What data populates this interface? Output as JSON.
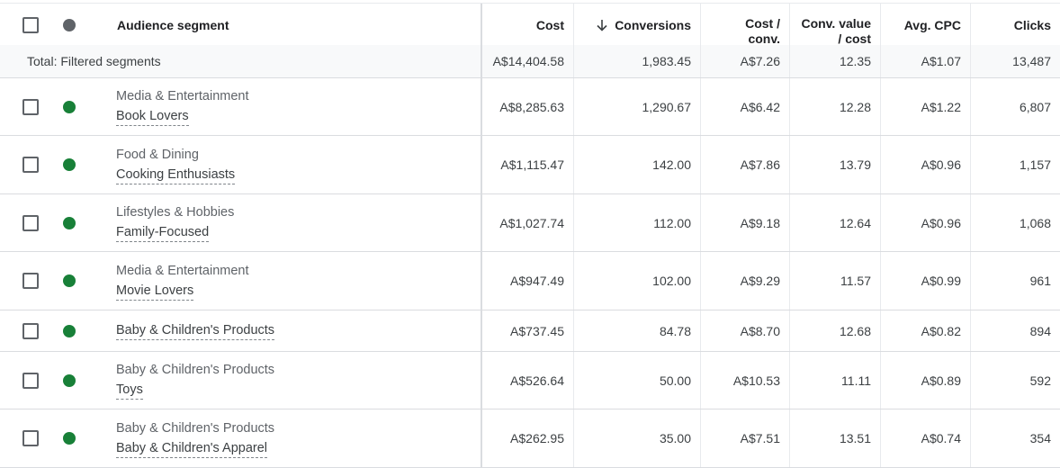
{
  "columns": {
    "segment": "Audience segment",
    "cost": "Cost",
    "conversions": "Conversions",
    "cost_conv_1": "Cost /",
    "cost_conv_2": "conv.",
    "conv_value_1": "Conv. value",
    "conv_value_2": "/ cost",
    "avg_cpc": "Avg. CPC",
    "clicks": "Clicks"
  },
  "sort": {
    "column": "Conversions",
    "direction": "descending",
    "icon": "arrow-down-icon"
  },
  "colors": {
    "status_enabled": "#188038",
    "status_header": "#5f6368"
  },
  "total": {
    "label": "Total: Filtered segments",
    "cost": "A$14,404.58",
    "conversions": "1,983.45",
    "cost_conv": "A$7.26",
    "conv_value_cost": "12.35",
    "avg_cpc": "A$1.07",
    "clicks": "13,487"
  },
  "rows": [
    {
      "parent": "Media & Entertainment",
      "name": "Book Lovers",
      "cost": "A$8,285.63",
      "conversions": "1,290.67",
      "cost_conv": "A$6.42",
      "conv_value_cost": "12.28",
      "avg_cpc": "A$1.22",
      "clicks": "6,807"
    },
    {
      "parent": "Food & Dining",
      "name": "Cooking Enthusiasts",
      "cost": "A$1,115.47",
      "conversions": "142.00",
      "cost_conv": "A$7.86",
      "conv_value_cost": "13.79",
      "avg_cpc": "A$0.96",
      "clicks": "1,157"
    },
    {
      "parent": "Lifestyles & Hobbies",
      "name": "Family-Focused",
      "cost": "A$1,027.74",
      "conversions": "112.00",
      "cost_conv": "A$9.18",
      "conv_value_cost": "12.64",
      "avg_cpc": "A$0.96",
      "clicks": "1,068"
    },
    {
      "parent": "Media & Entertainment",
      "name": "Movie Lovers",
      "cost": "A$947.49",
      "conversions": "102.00",
      "cost_conv": "A$9.29",
      "conv_value_cost": "11.57",
      "avg_cpc": "A$0.99",
      "clicks": "961"
    },
    {
      "parent": "",
      "name": "Baby & Children's Products",
      "cost": "A$737.45",
      "conversions": "84.78",
      "cost_conv": "A$8.70",
      "conv_value_cost": "12.68",
      "avg_cpc": "A$0.82",
      "clicks": "894"
    },
    {
      "parent": "Baby & Children's Products",
      "name": "Toys",
      "cost": "A$526.64",
      "conversions": "50.00",
      "cost_conv": "A$10.53",
      "conv_value_cost": "11.11",
      "avg_cpc": "A$0.89",
      "clicks": "592"
    },
    {
      "parent": "Baby & Children's Products",
      "name": "Baby & Children's Apparel",
      "cost": "A$262.95",
      "conversions": "35.00",
      "cost_conv": "A$7.51",
      "conv_value_cost": "13.51",
      "avg_cpc": "A$0.74",
      "clicks": "354"
    }
  ]
}
